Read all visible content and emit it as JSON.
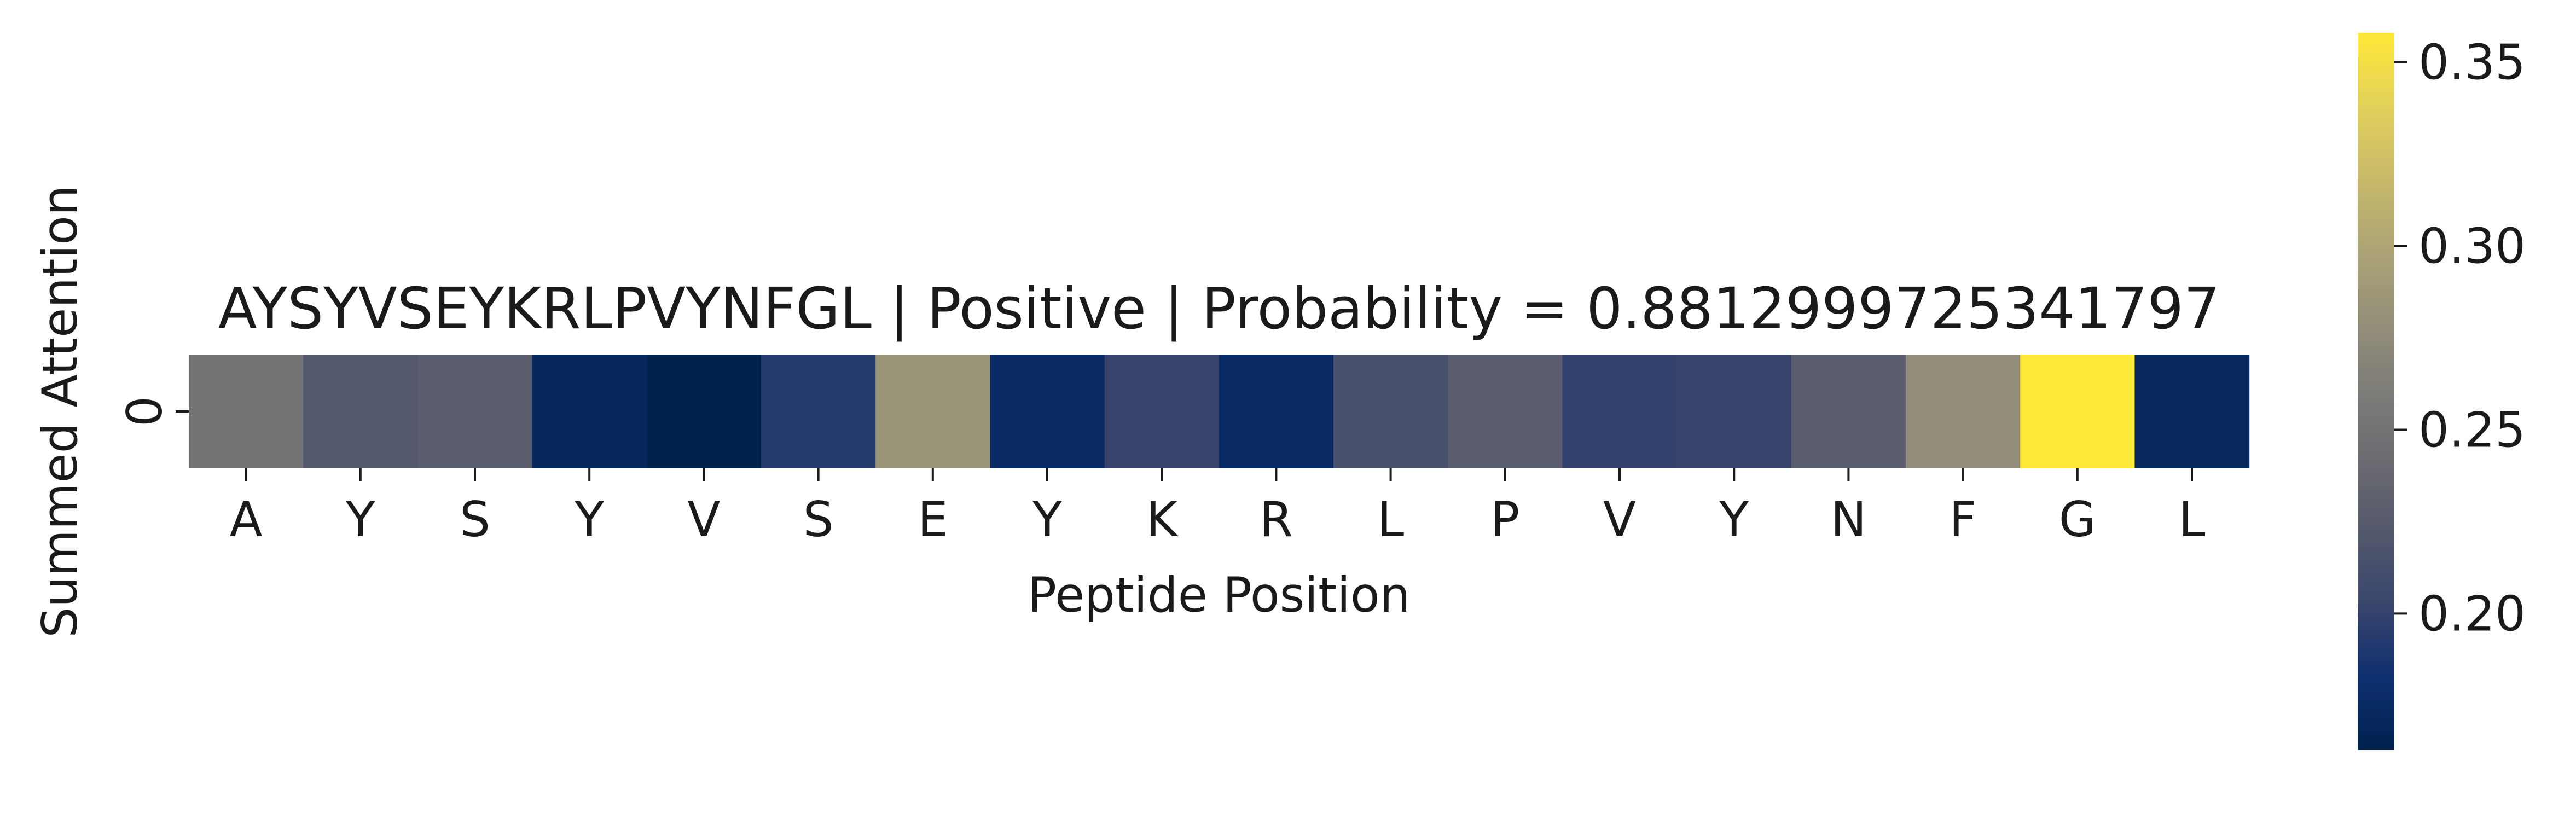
{
  "chart_data": {
    "type": "heatmap",
    "title": "AYSYVSEYKRLPVYNFGL | Positive | Probability = 0.8812999725341797",
    "xlabel": "Peptide Position",
    "ylabel": "Summed Attention",
    "x_categories": [
      "A",
      "Y",
      "S",
      "Y",
      "V",
      "S",
      "E",
      "Y",
      "K",
      "R",
      "L",
      "P",
      "V",
      "Y",
      "N",
      "F",
      "G",
      "L"
    ],
    "y_categories": [
      "0"
    ],
    "values": [
      [
        0.252,
        0.222,
        0.228,
        0.171,
        0.163,
        0.193,
        0.284,
        0.175,
        0.201,
        0.174,
        0.215,
        0.227,
        0.199,
        0.201,
        0.228,
        0.278,
        0.358,
        0.172
      ]
    ],
    "colormap": "cividis",
    "colorbar": {
      "range": [
        0.163,
        0.358
      ],
      "ticks": [
        0.2,
        0.25,
        0.3,
        0.35
      ],
      "tick_labels": [
        "0.20",
        "0.25",
        "0.30",
        "0.35"
      ]
    },
    "grid": false,
    "legend": "none"
  }
}
